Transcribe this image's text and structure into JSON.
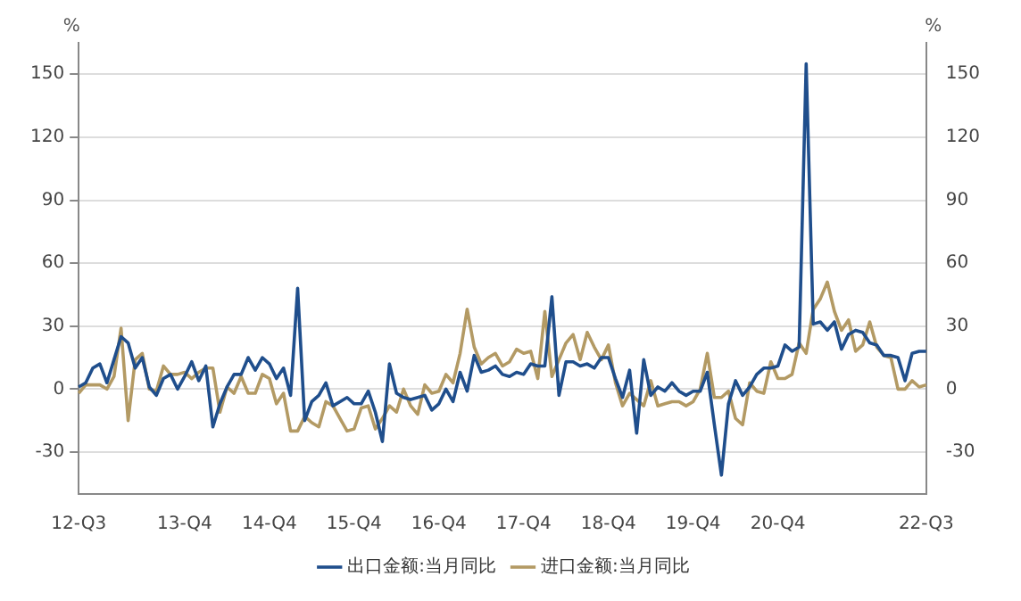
{
  "chart_data": {
    "type": "line",
    "ylabel": "%",
    "y2label": "%",
    "categories": [
      "12-Q3",
      null,
      null,
      null,
      null,
      null,
      null,
      null,
      null,
      null,
      null,
      null,
      null,
      null,
      null,
      "13-Q4",
      null,
      null,
      null,
      null,
      null,
      null,
      null,
      null,
      null,
      null,
      null,
      "14-Q4",
      null,
      null,
      null,
      null,
      null,
      null,
      null,
      null,
      null,
      null,
      null,
      "15-Q4",
      null,
      null,
      null,
      null,
      null,
      null,
      null,
      null,
      null,
      null,
      null,
      "16-Q4",
      null,
      null,
      null,
      null,
      null,
      null,
      null,
      null,
      null,
      null,
      null,
      "17-Q4",
      null,
      null,
      null,
      null,
      null,
      null,
      null,
      null,
      null,
      null,
      null,
      "18-Q4",
      null,
      null,
      null,
      null,
      null,
      null,
      null,
      null,
      null,
      null,
      null,
      "19-Q4",
      null,
      null,
      null,
      null,
      null,
      null,
      null,
      null,
      null,
      null,
      null,
      "20-Q4",
      null,
      null,
      null,
      null,
      null,
      null,
      null,
      null,
      null,
      null,
      null,
      null,
      null,
      null,
      null,
      null,
      null,
      null,
      null,
      null,
      "22-Q3"
    ],
    "series": [
      {
        "name": "出口金额:当月同比",
        "color": "#1f4e8c",
        "values": [
          1,
          3,
          10,
          12,
          3,
          14,
          25,
          22,
          10,
          15,
          1,
          -3,
          5,
          7,
          0,
          6,
          13,
          4,
          11,
          -18,
          -7,
          1,
          7,
          7,
          15,
          9,
          15,
          12,
          5,
          10,
          -3,
          48,
          -15,
          -6,
          -3,
          3,
          -8,
          -6,
          -4,
          -7,
          -7,
          -1,
          -11,
          -25,
          12,
          -2,
          -4,
          -5,
          -4,
          -3,
          -10,
          -7,
          0,
          -6,
          8,
          -1,
          16,
          8,
          9,
          11,
          7,
          6,
          8,
          7,
          12,
          11,
          11,
          44,
          -3,
          13,
          13,
          11,
          12,
          10,
          15,
          15,
          5,
          -4,
          9,
          -21,
          14,
          -3,
          1,
          -1,
          3,
          -1,
          -3,
          -1,
          -1,
          8,
          -17,
          -41,
          -7,
          4,
          -3,
          1,
          7,
          10,
          10,
          11,
          21,
          18,
          20,
          155,
          31,
          32,
          28,
          32,
          19,
          26,
          28,
          27,
          22,
          21,
          16,
          16,
          15,
          4,
          17,
          18,
          18
        ]
      },
      {
        "name": "进口金额:当月同比",
        "color": "#b39a64",
        "values": [
          -2,
          2,
          2,
          2,
          0,
          6,
          29,
          -15,
          14,
          17,
          0,
          -1,
          11,
          7,
          7,
          8,
          5,
          8,
          10,
          10,
          -11,
          1,
          -2,
          6,
          -2,
          -2,
          7,
          5,
          -7,
          -2,
          -20,
          -20,
          -13,
          -16,
          -18,
          -6,
          -8,
          -14,
          -20,
          -19,
          -9,
          -8,
          -19,
          -14,
          -8,
          -11,
          0,
          -8,
          -12,
          2,
          -2,
          -1,
          7,
          3,
          17,
          38,
          20,
          12,
          15,
          17,
          11,
          13,
          19,
          17,
          18,
          5,
          37,
          6,
          14,
          22,
          26,
          14,
          27,
          20,
          14,
          21,
          3,
          -8,
          -2,
          -5,
          -8,
          4,
          -8,
          -7,
          -6,
          -6,
          -8,
          -6,
          0,
          17,
          -4,
          -4,
          -1,
          -14,
          -17,
          3,
          -1,
          -2,
          13,
          5,
          5,
          7,
          22,
          17,
          38,
          43,
          51,
          37,
          28,
          33,
          18,
          21,
          32,
          20,
          16,
          15,
          0,
          0,
          4,
          1,
          2
        ]
      }
    ],
    "ylim": [
      -50,
      165
    ],
    "yticks": [
      -30,
      0,
      30,
      60,
      90,
      120,
      150
    ],
    "y2lim": [
      -50,
      165
    ],
    "y2ticks": [
      -30,
      0,
      30,
      60,
      90,
      120,
      150
    ],
    "grid": "y",
    "legend": "bottom",
    "marker": "none",
    "line_style": "solid"
  }
}
